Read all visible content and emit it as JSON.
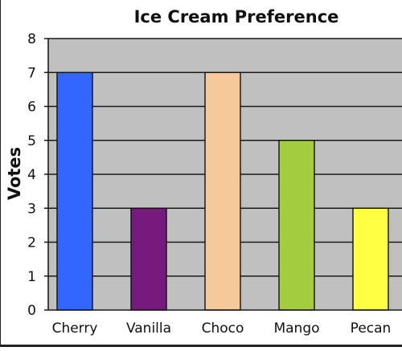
{
  "chart_data": {
    "type": "bar",
    "title": "Ice Cream Preference",
    "xlabel": "",
    "ylabel": "Votes",
    "categories": [
      "Cherry",
      "Vanilla",
      "Choco",
      "Mango",
      "Pecan"
    ],
    "values": [
      7,
      3,
      7,
      5,
      3
    ],
    "colors": [
      "#3366ff",
      "#771a7e",
      "#f5c99a",
      "#a3cc3f",
      "#ffff44"
    ],
    "ylim": [
      0,
      8
    ],
    "yticks": [
      "0",
      "1",
      "2",
      "3",
      "4",
      "5",
      "6",
      "7",
      "8"
    ],
    "grid": true,
    "legend": "none",
    "plot_background": "#c0c0c0"
  }
}
